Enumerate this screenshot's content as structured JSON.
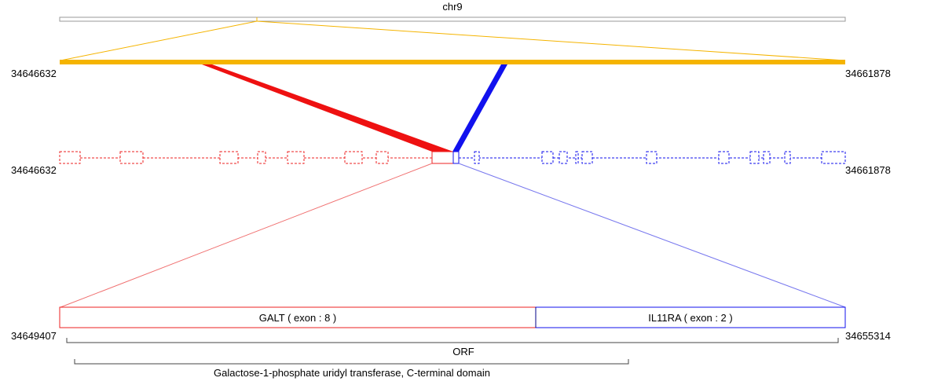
{
  "chromosome": {
    "label": "chr9"
  },
  "region": {
    "start_label": "34646632",
    "end_label": "34661878"
  },
  "exon_track": {
    "start_label": "34646632",
    "end_label": "34661878"
  },
  "fusion": {
    "start_label": "34649407",
    "end_label": "34655314",
    "gene_a_label": "GALT ( exon : 8 )",
    "gene_b_label": "IL11RA ( exon : 2 )"
  },
  "annotations": {
    "orf_label": "ORF",
    "domain_label": "Galactose-1-phosphate uridyl transferase, C-terminal domain"
  },
  "colors": {
    "chrom_outline": "#999999",
    "region_bar": "#f5b400",
    "gene_a": "#ee2222",
    "gene_b": "#1111ee",
    "gene_a_light": "#f07070",
    "gene_b_light": "#7777ee",
    "bracket": "#444444"
  }
}
